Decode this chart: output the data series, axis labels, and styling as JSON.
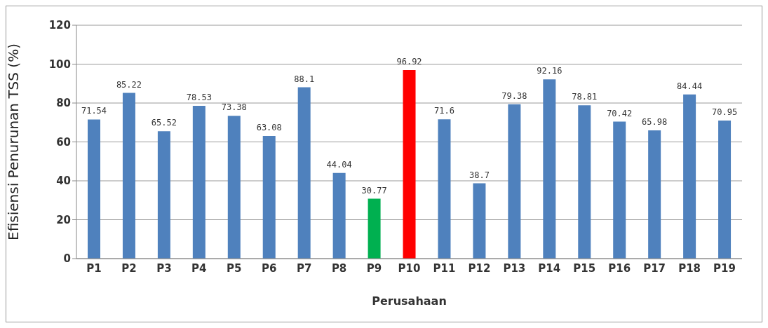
{
  "chart_data": {
    "type": "bar",
    "xlabel": "Perusahaan",
    "ylabel": "Efisiensi Penurunan TSS (%)",
    "categories": [
      "P1",
      "P2",
      "P3",
      "P4",
      "P5",
      "P6",
      "P7",
      "P8",
      "P9",
      "P10",
      "P11",
      "P12",
      "P13",
      "P14",
      "P15",
      "P16",
      "P17",
      "P18",
      "P19"
    ],
    "values": [
      71.54,
      85.22,
      65.52,
      78.53,
      73.38,
      63.08,
      88.1,
      44.04,
      30.77,
      96.92,
      71.6,
      38.7,
      79.38,
      92.16,
      78.81,
      70.42,
      65.98,
      84.44,
      70.95
    ],
    "colors": [
      "#4f81bd",
      "#4f81bd",
      "#4f81bd",
      "#4f81bd",
      "#4f81bd",
      "#4f81bd",
      "#4f81bd",
      "#4f81bd",
      "#00b050",
      "#ff0000",
      "#4f81bd",
      "#4f81bd",
      "#4f81bd",
      "#4f81bd",
      "#4f81bd",
      "#4f81bd",
      "#4f81bd",
      "#4f81bd",
      "#4f81bd"
    ],
    "ylim": [
      0,
      120
    ],
    "yticks": [
      0,
      20,
      40,
      60,
      80,
      100,
      120
    ],
    "grid": "y",
    "data_labels": true
  }
}
